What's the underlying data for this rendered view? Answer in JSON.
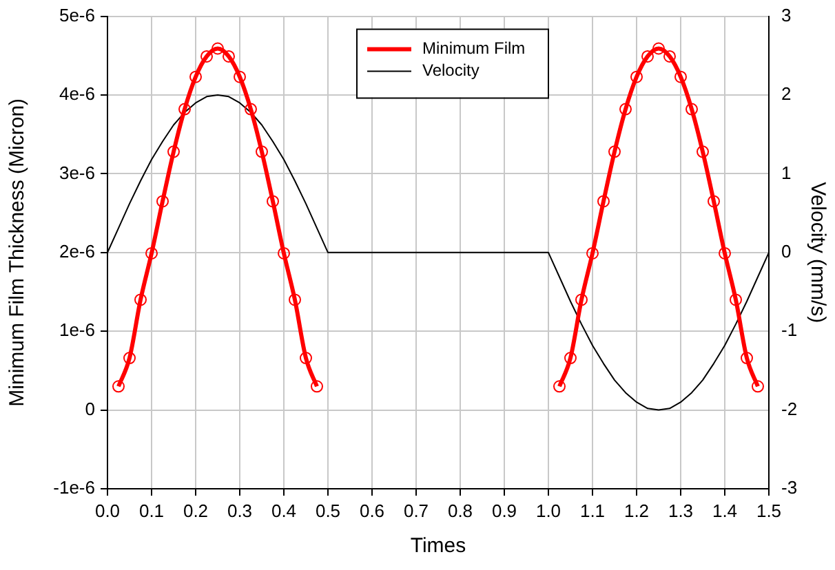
{
  "chart_data": {
    "type": "line",
    "xlabel": "Times",
    "ylabel": "Minimum Film Thickness (Micron)",
    "y2label": "Velocity (mm/s)",
    "xlim": [
      0,
      1.5
    ],
    "xticks": [
      {
        "value": 0,
        "label": "0.0"
      },
      0.1,
      0.2,
      0.3,
      0.4,
      0.5,
      0.6,
      0.7,
      0.8,
      0.9,
      {
        "value": 1,
        "label": "1.0"
      },
      1.1,
      1.2,
      1.3,
      1.4,
      1.5
    ],
    "ylim": [
      -1e-06,
      5e-06
    ],
    "yticks": [
      {
        "value": -1e-06,
        "label": "-1e-6"
      },
      0,
      {
        "value": 1e-06,
        "label": "1e-6"
      },
      {
        "value": 2e-06,
        "label": "2e-6"
      },
      {
        "value": 3e-06,
        "label": "3e-6"
      },
      {
        "value": 4e-06,
        "label": "4e-6"
      },
      {
        "value": 5e-06,
        "label": "5e-6"
      }
    ],
    "y2lim": [
      -3,
      3
    ],
    "y2ticks": [
      -3,
      -2,
      -1,
      0,
      1,
      2,
      3
    ],
    "grid": true,
    "legend": "top",
    "series": [
      {
        "name": "Minimum Film",
        "color": "#ff0000",
        "marker": "circle",
        "x": [
          0.025,
          0.05,
          0.075,
          0.1,
          0.125,
          0.15,
          0.175,
          0.2,
          0.225,
          0.25,
          0.275,
          0.3,
          0.325,
          0.35,
          0.375,
          0.4,
          0.425,
          0.45,
          0.475,
          null,
          1.025,
          1.05,
          1.075,
          1.1,
          1.125,
          1.15,
          1.175,
          1.2,
          1.225,
          1.25,
          1.275,
          1.3,
          1.325,
          1.35,
          1.375,
          1.4,
          1.425,
          1.45,
          1.475
        ],
        "values": [
          3e-07,
          6.6e-07,
          1.4e-06,
          1.99e-06,
          2.65e-06,
          3.28e-06,
          3.82e-06,
          4.23e-06,
          4.49e-06,
          4.59e-06,
          4.49e-06,
          4.23e-06,
          3.82e-06,
          3.28e-06,
          2.65e-06,
          1.99e-06,
          1.4e-06,
          6.6e-07,
          3e-07,
          null,
          3e-07,
          6.6e-07,
          1.4e-06,
          1.99e-06,
          2.65e-06,
          3.28e-06,
          3.82e-06,
          4.23e-06,
          4.49e-06,
          4.59e-06,
          4.49e-06,
          4.23e-06,
          3.82e-06,
          3.28e-06,
          2.65e-06,
          1.99e-06,
          1.4e-06,
          6.6e-07,
          3e-07
        ]
      },
      {
        "name": "Velocity",
        "color": "#000000",
        "marker": "none",
        "axis": "y2",
        "x": [
          0,
          0.025,
          0.05,
          0.075,
          0.1,
          0.125,
          0.15,
          0.175,
          0.2,
          0.225,
          0.25,
          0.275,
          0.3,
          0.325,
          0.35,
          0.375,
          0.4,
          0.425,
          0.45,
          0.475,
          0.5,
          1.0,
          1.025,
          1.05,
          1.075,
          1.1,
          1.125,
          1.15,
          1.175,
          1.2,
          1.225,
          1.25,
          1.275,
          1.3,
          1.325,
          1.35,
          1.375,
          1.4,
          1.425,
          1.45,
          1.475,
          1.5
        ],
        "values": [
          0,
          0.31,
          0.62,
          0.91,
          1.18,
          1.41,
          1.62,
          1.78,
          1.9,
          1.98,
          2,
          1.98,
          1.9,
          1.78,
          1.62,
          1.41,
          1.18,
          0.91,
          0.62,
          0.31,
          0,
          0,
          -0.31,
          -0.62,
          -0.91,
          -1.18,
          -1.41,
          -1.62,
          -1.78,
          -1.9,
          -1.98,
          -2,
          -1.98,
          -1.9,
          -1.78,
          -1.62,
          -1.41,
          -1.18,
          -0.91,
          -0.62,
          -0.31,
          0
        ]
      }
    ]
  }
}
